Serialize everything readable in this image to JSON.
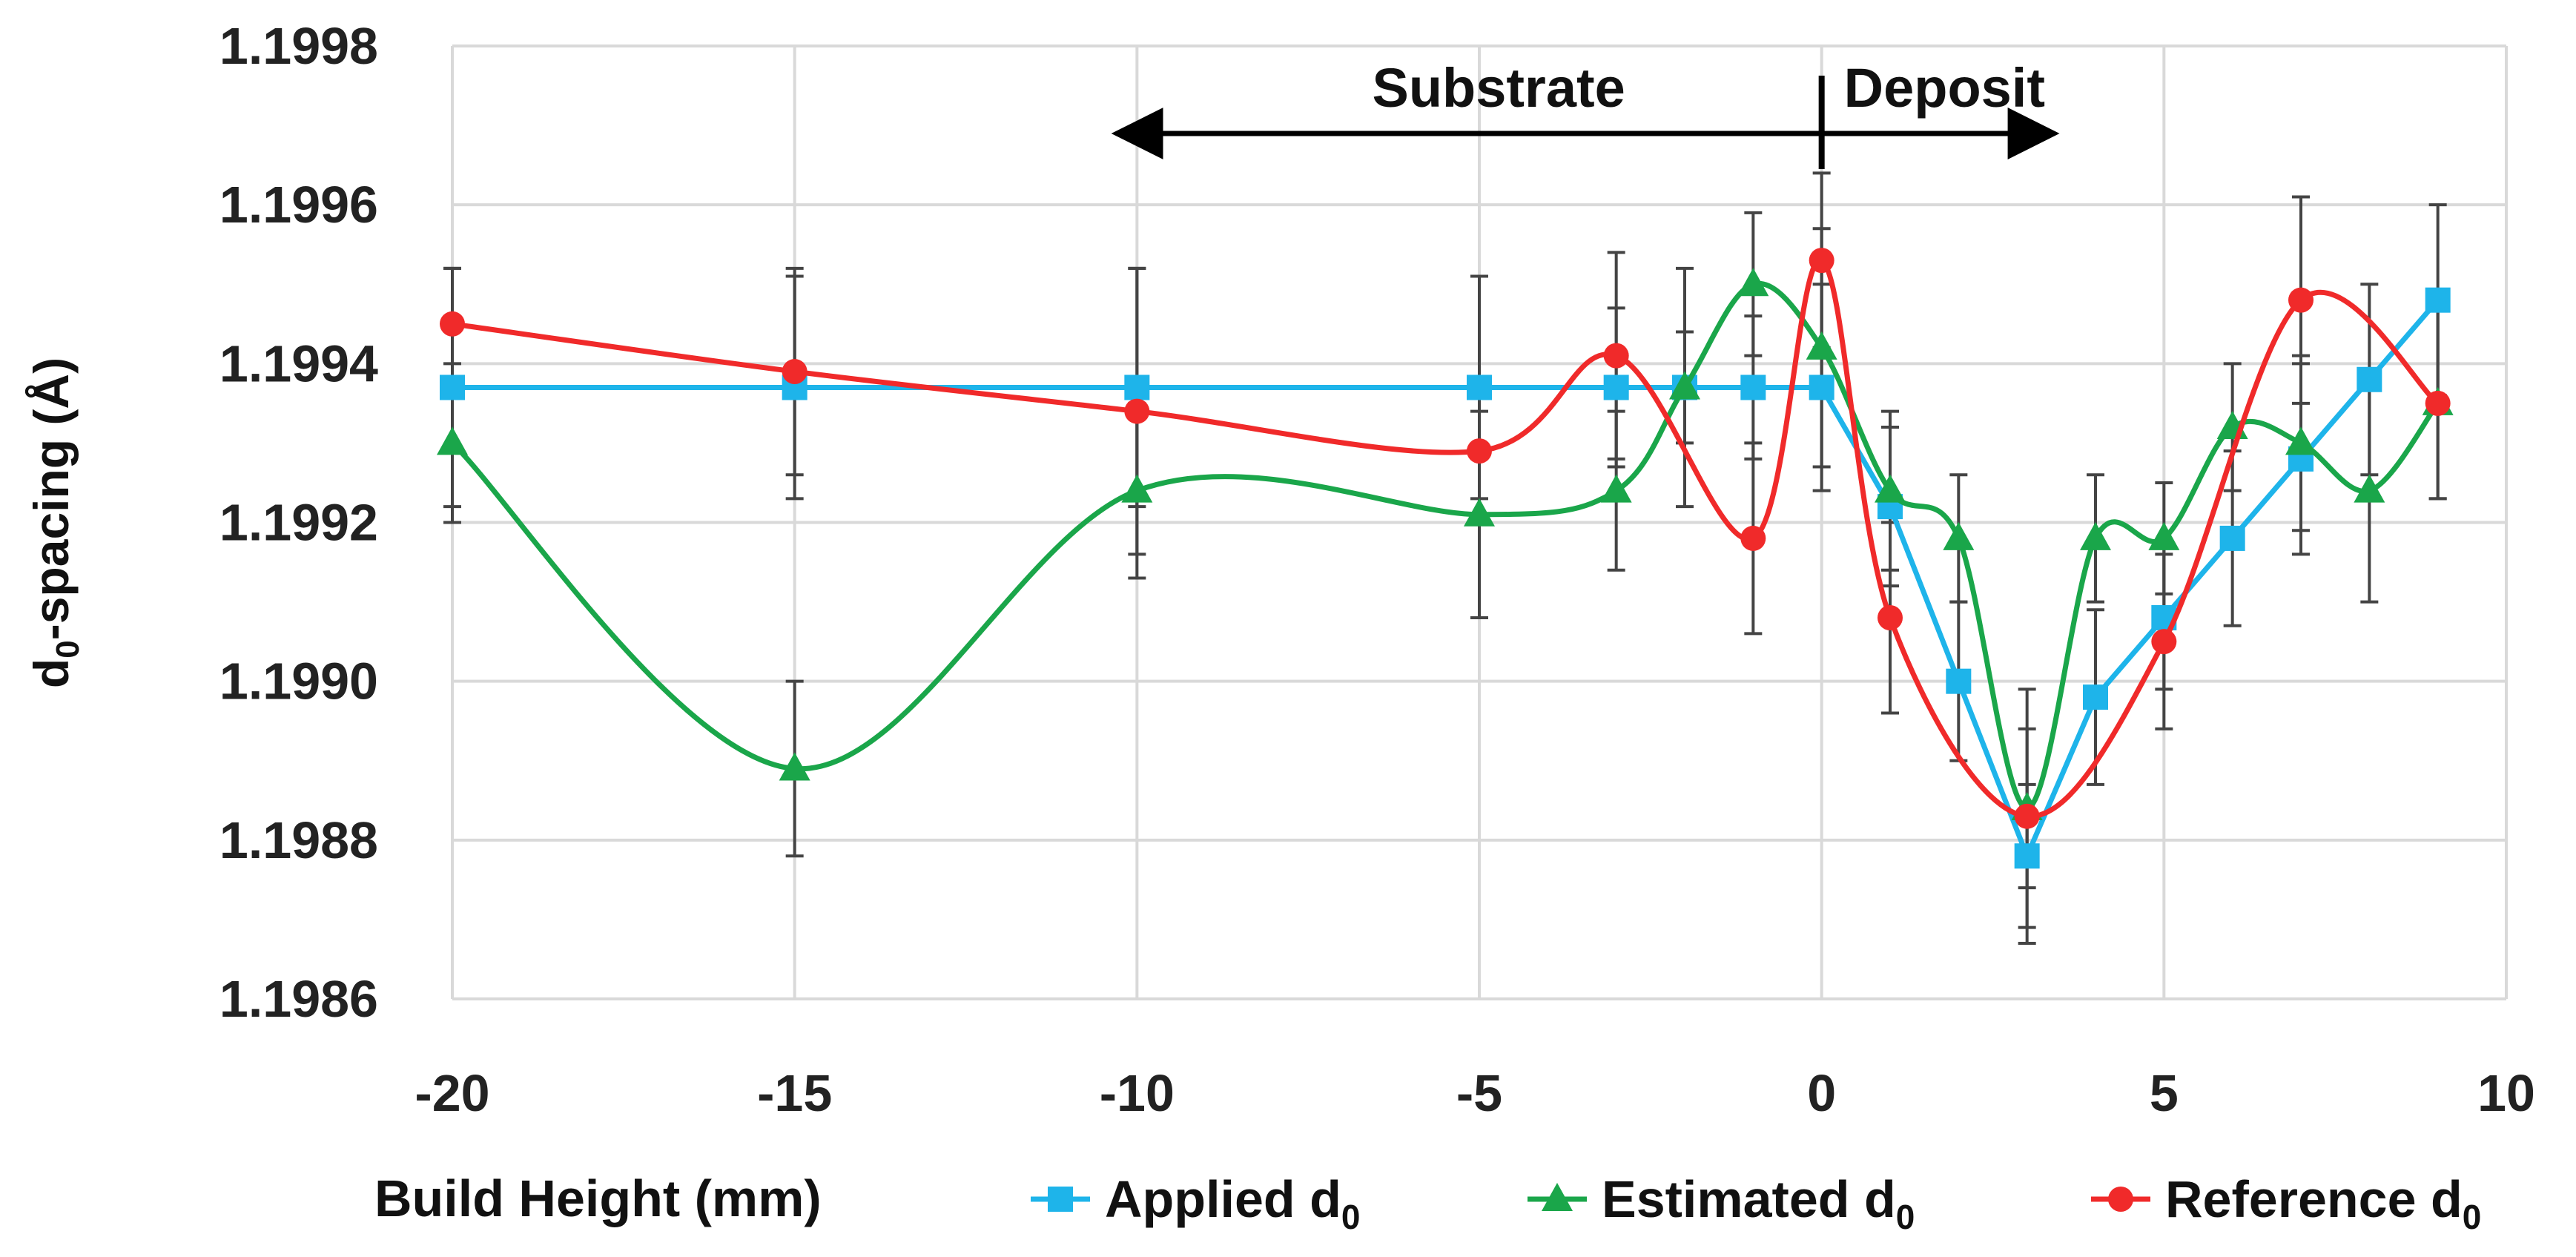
{
  "chart_data": {
    "type": "line",
    "title": "",
    "xlabel": "Build Height (mm)",
    "ylabel": "d",
    "ylabel_sub": "0",
    "ylabel_suffix": "-spacing  (Å)",
    "xlim": [
      -20,
      10
    ],
    "ylim": [
      1.1986,
      1.1998
    ],
    "xticks": [
      -20,
      -15,
      -10,
      -5,
      0,
      5,
      10
    ],
    "xtick_labels": [
      "-20",
      "-15",
      "-10",
      "-5",
      "0",
      "5",
      "10"
    ],
    "yticks": [
      1.1986,
      1.1988,
      1.199,
      1.1992,
      1.1994,
      1.1996,
      1.1998
    ],
    "ytick_labels": [
      "1.1986",
      "1.1988",
      "1.1990",
      "1.1992",
      "1.1994",
      "1.1996",
      "1.1998"
    ],
    "grid": true,
    "legend_position": "bottom",
    "annotations": {
      "substrate": "Substrate",
      "deposit": "Deposit",
      "substrate_arrow_from": 0,
      "substrate_arrow_to": -10.3,
      "deposit_arrow_to": 3.4,
      "divider_x": 0
    },
    "series": [
      {
        "name": "Applied d",
        "name_sub": "0",
        "color": "#1eb4ea",
        "marker": "square",
        "x": [
          -20,
          -15,
          -10,
          -5,
          -3,
          -2,
          -1,
          0,
          1,
          2,
          3,
          4,
          5,
          6,
          7,
          8,
          9
        ],
        "y": [
          1.19937,
          1.19937,
          1.19937,
          1.19937,
          1.19937,
          1.19937,
          1.19937,
          1.19937,
          1.19922,
          1.199,
          1.19878,
          1.19898,
          1.19908,
          1.19918,
          1.19928,
          1.19938,
          1.19948
        ],
        "err": [
          0.00015,
          0.00014,
          0.00015,
          0.00014,
          0.0001,
          7e-05,
          9e-05,
          0.00013,
          0.0001,
          0.0001,
          9e-05,
          0.00011,
          9e-05,
          0.00011,
          0.00012,
          0.00012,
          0.00012
        ]
      },
      {
        "name": "Estimated d",
        "name_sub": "0",
        "color": "#1aa64a",
        "marker": "triangle",
        "x": [
          -20,
          -15,
          -10,
          -5,
          -3,
          -2,
          -1,
          0,
          1,
          2,
          3,
          4,
          5,
          6,
          7,
          8,
          9
        ],
        "y": [
          1.1993,
          1.19889,
          1.19924,
          1.19921,
          1.19924,
          1.19937,
          1.1995,
          1.19942,
          1.19924,
          1.19918,
          1.19884,
          1.19918,
          1.19918,
          1.19932,
          1.1993,
          1.19924,
          1.19935
        ],
        "err": [
          0.0001,
          0.00011,
          0.00011,
          0.00013,
          0.0001,
          0.00015,
          9e-05,
          0.00015,
          0.0001,
          8e-05,
          0.0001,
          8e-05,
          7e-05,
          8e-05,
          0.00011,
          0.00014,
          0.00012
        ]
      },
      {
        "name": "Reference d",
        "name_sub": "0",
        "color": "#f02a2a",
        "marker": "circle",
        "x": [
          -20,
          -15,
          -10,
          -5,
          -3,
          -1,
          0,
          1,
          3,
          5,
          7,
          9
        ],
        "y": [
          1.19945,
          1.19939,
          1.19934,
          1.19929,
          1.19941,
          1.19918,
          1.19953,
          1.19908,
          1.19883,
          1.19905,
          1.19948,
          1.19935
        ],
        "err": [
          7e-05,
          0.00013,
          0.00018,
          8e-05,
          0.00013,
          0.00012,
          0.00011,
          0.00012,
          0.00016,
          0.00011,
          0.00013,
          0.00012
        ]
      }
    ]
  }
}
